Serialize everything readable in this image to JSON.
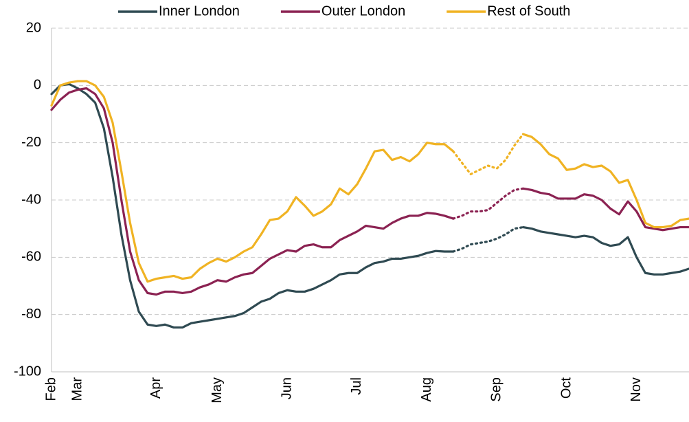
{
  "chart_data": {
    "type": "line",
    "categories": [
      "Feb",
      null,
      null,
      "Mar",
      null,
      null,
      null,
      null,
      null,
      null,
      null,
      null,
      "Apr",
      null,
      null,
      null,
      null,
      null,
      null,
      "May",
      null,
      null,
      null,
      null,
      null,
      null,
      null,
      "Jun",
      null,
      null,
      null,
      null,
      null,
      null,
      null,
      "Jul",
      null,
      null,
      null,
      null,
      null,
      null,
      null,
      "Aug",
      null,
      null,
      null,
      null,
      null,
      null,
      null,
      "Sep",
      null,
      null,
      null,
      null,
      null,
      null,
      null,
      "Oct",
      null,
      null,
      null,
      null,
      null,
      null,
      null,
      "Nov",
      null,
      null,
      null,
      null,
      null,
      null
    ],
    "series": [
      {
        "name": "Inner London",
        "color": "#2f4a52",
        "values": [
          -3,
          0,
          0.5,
          -1,
          -3,
          -6,
          -15,
          -32,
          -52,
          -68,
          -79,
          -83.5,
          -84,
          -83.5,
          -84.5,
          -84.5,
          -83,
          -82.5,
          -82,
          -81.5,
          -81,
          -80.5,
          -79.5,
          -77.5,
          -75.5,
          -74.5,
          -72.5,
          -71.5,
          -72,
          -72,
          -71,
          -69.5,
          -68,
          -66,
          -65.5,
          -65.5,
          -63.5,
          -62,
          -61.5,
          -60.5,
          -60.5,
          -60,
          -59.5,
          -58.5,
          -57.8,
          -58,
          -58,
          -57,
          -55.5,
          -55,
          -54.5,
          -53.5,
          -52,
          -50,
          -49.5,
          -50,
          -51,
          -51.5,
          -52,
          -52.5,
          -53,
          -52.5,
          -53,
          -55,
          -56,
          -55.5,
          -53,
          -60,
          -65.5,
          -66,
          -66,
          -65.5,
          -65,
          -64
        ]
      },
      {
        "name": "Outer London",
        "color": "#8b2252",
        "values": [
          -8.5,
          -5,
          -2.5,
          -1.5,
          -1,
          -3,
          -8,
          -20,
          -40,
          -58,
          -68,
          -72.5,
          -73,
          -72,
          -72,
          -72.5,
          -72,
          -70.5,
          -69.5,
          -68,
          -68.5,
          -67,
          -66,
          -65.5,
          -63,
          -60.5,
          -59,
          -57.5,
          -58,
          -56,
          -55.5,
          -56.5,
          -56.5,
          -54,
          -52.5,
          -51,
          -49,
          -49.5,
          -50,
          -48,
          -46.5,
          -45.5,
          -45.5,
          -44.5,
          -44.8,
          -45.5,
          -46.5,
          -45.5,
          -44,
          -44,
          -43.5,
          -41,
          -38.5,
          -36.5,
          -36,
          -36.5,
          -37.5,
          -38,
          -39.5,
          -39.5,
          -39.5,
          -38,
          -38.5,
          -40,
          -43,
          -45,
          -40.5,
          -44,
          -49.5,
          -50,
          -50.5,
          -50,
          -49.5,
          -49.5
        ]
      },
      {
        "name": "Rest of South",
        "color": "#f0b323",
        "values": [
          -7,
          0,
          1,
          1.5,
          1.5,
          0,
          -4,
          -13,
          -30,
          -48,
          -62,
          -68.5,
          -67.5,
          -67,
          -66.5,
          -67.5,
          -67,
          -64,
          -62,
          -60.5,
          -61.5,
          -60,
          -58,
          -56.5,
          -52,
          -47,
          -46.5,
          -44,
          -39,
          -42,
          -45.5,
          -44,
          -41.5,
          -36,
          -38,
          -34.5,
          -29,
          -23,
          -22.5,
          -26,
          -25,
          -26.5,
          -24,
          -20,
          -20.5,
          -20.5,
          -23,
          -27,
          -31,
          -29.5,
          -28,
          -29,
          -26,
          -21,
          -17,
          -18,
          -20.5,
          -24,
          -25.5,
          -29.5,
          -29,
          -27.5,
          -28.5,
          -28,
          -30,
          -34,
          -33,
          -40,
          -48,
          -49.5,
          -49.5,
          -49,
          -47,
          -46.5
        ]
      }
    ],
    "dotted_range": [
      46,
      54
    ],
    "ylim": [
      -100,
      20
    ],
    "yticks": [
      -100,
      -80,
      -60,
      -40,
      -20,
      0,
      20
    ],
    "grid": true,
    "legend": "top"
  }
}
